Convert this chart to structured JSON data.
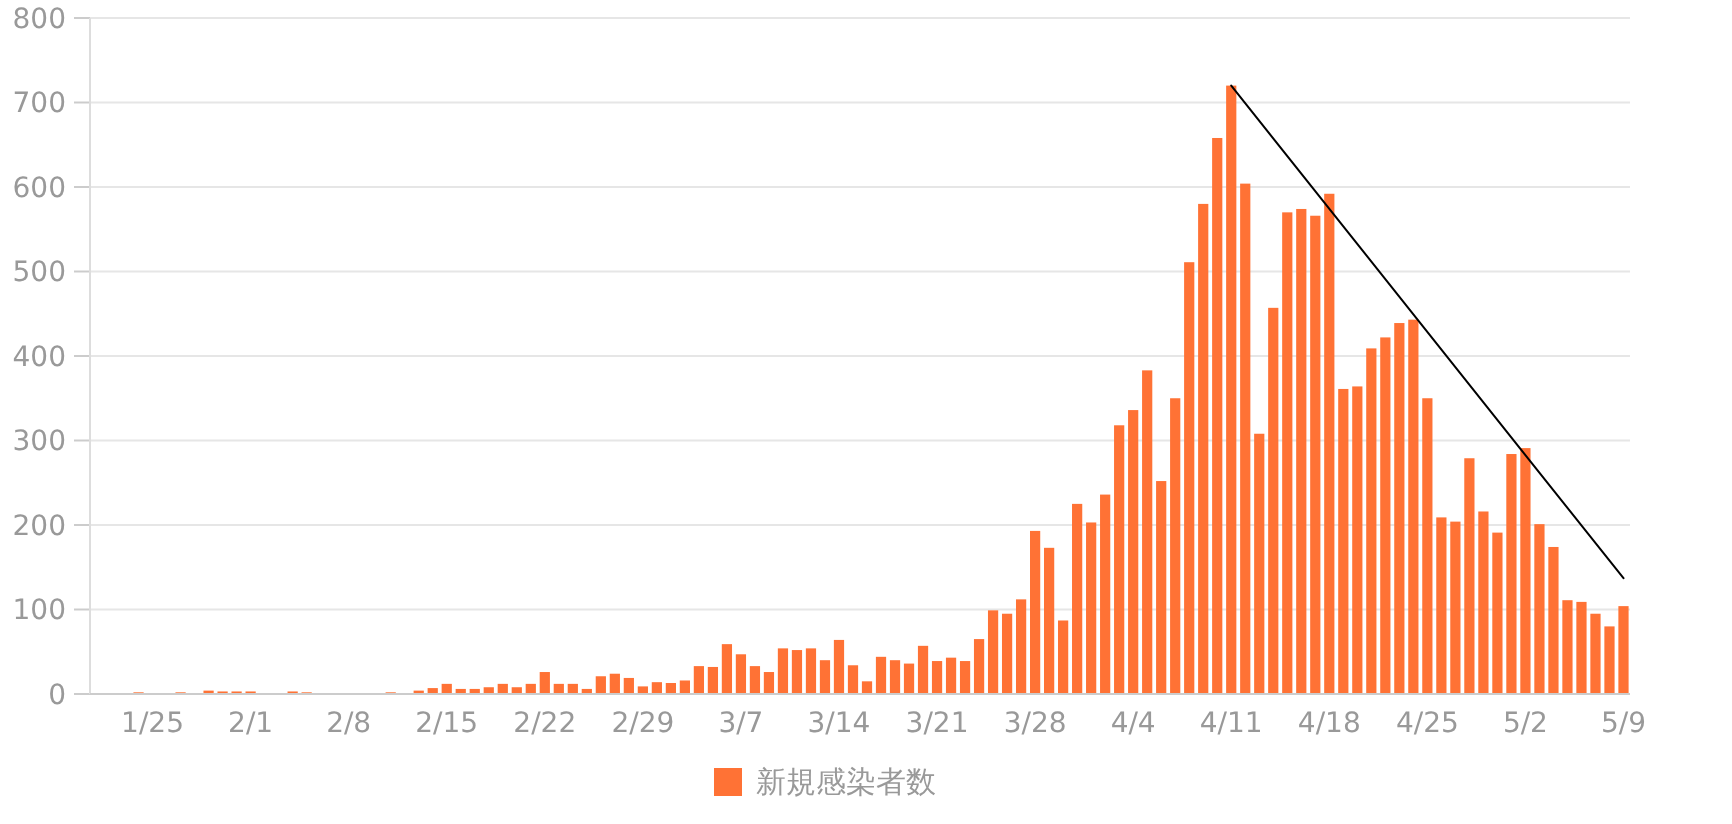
{
  "chart_data": {
    "type": "bar",
    "categories": [
      null,
      null,
      null,
      null,
      "1/25",
      null,
      null,
      null,
      null,
      null,
      null,
      "2/1",
      null,
      null,
      null,
      null,
      null,
      null,
      "2/8",
      null,
      null,
      null,
      null,
      null,
      null,
      "2/15",
      null,
      null,
      null,
      null,
      null,
      null,
      "2/22",
      null,
      null,
      null,
      null,
      null,
      null,
      "2/29",
      null,
      null,
      null,
      null,
      null,
      null,
      "3/7",
      null,
      null,
      null,
      null,
      null,
      null,
      "3/14",
      null,
      null,
      null,
      null,
      null,
      null,
      "3/21",
      null,
      null,
      null,
      null,
      null,
      null,
      "3/28",
      null,
      null,
      null,
      null,
      null,
      null,
      "4/4",
      null,
      null,
      null,
      null,
      null,
      null,
      "4/11",
      null,
      null,
      null,
      null,
      null,
      null,
      "4/18",
      null,
      null,
      null,
      null,
      null,
      null,
      "4/25",
      null,
      null,
      null,
      null,
      null,
      null,
      "5/2",
      null,
      null,
      null,
      null,
      null,
      null,
      "5/9"
    ],
    "series": [
      {
        "name": "新規感染者数",
        "color": "#ff7235",
        "values": [
          0,
          0,
          0,
          2,
          1,
          0,
          2,
          0,
          4,
          3,
          3,
          3,
          0,
          0,
          3,
          2,
          0,
          1,
          0,
          0,
          0,
          2,
          1,
          4,
          7,
          12,
          6,
          6,
          8,
          12,
          8,
          12,
          26,
          12,
          12,
          6,
          21,
          24,
          19,
          9,
          14,
          13,
          16,
          33,
          32,
          59,
          47,
          33,
          26,
          54,
          52,
          54,
          40,
          64,
          34,
          15,
          44,
          40,
          36,
          57,
          39,
          43,
          39,
          65,
          99,
          95,
          112,
          193,
          173,
          87,
          225,
          203,
          236,
          318,
          336,
          383,
          252,
          350,
          511,
          580,
          658,
          720,
          604,
          308,
          457,
          570,
          574,
          566,
          592,
          361,
          364,
          409,
          422,
          439,
          443,
          350,
          209,
          204,
          279,
          216,
          191,
          284,
          291,
          201,
          174,
          111,
          109,
          95,
          80,
          104
        ]
      },
      {
        "type": "line",
        "color": "#000000",
        "x": [
          "4/11",
          "5/9"
        ],
        "values": [
          720,
          137
        ]
      }
    ],
    "ylim": [
      0,
      800
    ],
    "yticks": [
      0,
      100,
      200,
      300,
      400,
      500,
      600,
      700,
      800
    ],
    "grid": "y",
    "legend": "bottom"
  }
}
